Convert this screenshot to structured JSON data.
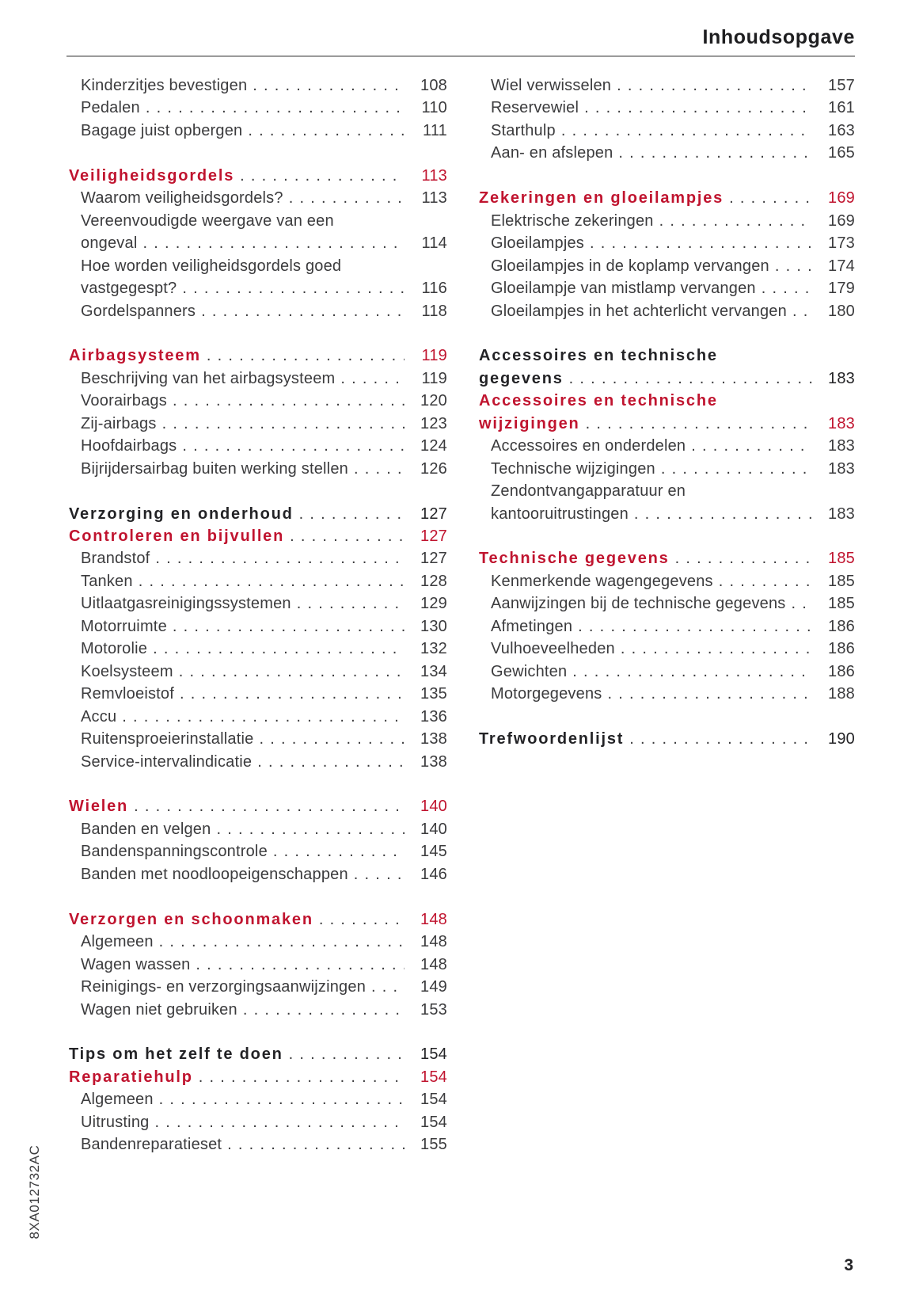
{
  "header": {
    "title": "Inhoudsopgave"
  },
  "footer": {
    "page_number": "3"
  },
  "doc_code": "8XA012732AC",
  "colors": {
    "accent_red": "#c0142f",
    "body_text": "#3b3b3d",
    "heading_black": "#232326",
    "rule_gray": "#9b9b9b"
  },
  "toc": {
    "columns": [
      {
        "groups": [
          {
            "entries": [
              {
                "style": "sub",
                "label": "Kinderzitjes bevestigen",
                "page": "108"
              },
              {
                "style": "sub",
                "label": "Pedalen",
                "page": "110"
              },
              {
                "style": "sub",
                "label": "Bagage juist opbergen",
                "page": "111"
              }
            ]
          },
          {
            "entries": [
              {
                "style": "red",
                "label": "Veiligheidsgordels",
                "page": "113"
              },
              {
                "style": "sub",
                "label": "Waarom veiligheidsgordels?",
                "page": "113"
              },
              {
                "style": "sub",
                "label": "Vereenvoudigde weergave van een",
                "label2": "ongeval",
                "page": "114"
              },
              {
                "style": "sub",
                "label": "Hoe worden veiligheidsgordels goed",
                "label2": "vastgegespt?",
                "page": "116"
              },
              {
                "style": "sub",
                "label": "Gordelspanners",
                "page": "118"
              }
            ]
          },
          {
            "entries": [
              {
                "style": "red",
                "label": "Airbagsysteem",
                "page": "119"
              },
              {
                "style": "sub",
                "label": "Beschrijving van het airbagsysteem",
                "page": "119"
              },
              {
                "style": "sub",
                "label": "Voorairbags",
                "page": "120"
              },
              {
                "style": "sub",
                "label": "Zij-airbags",
                "page": "123"
              },
              {
                "style": "sub",
                "label": "Hoofdairbags",
                "page": "124"
              },
              {
                "style": "sub",
                "label": "Bijrijdersairbag buiten werking stellen",
                "page": "126"
              }
            ]
          },
          {
            "entries": [
              {
                "style": "black",
                "label": "Verzorging en onderhoud",
                "page": "127"
              },
              {
                "style": "red",
                "label": "Controleren en bijvullen",
                "page": "127"
              },
              {
                "style": "sub",
                "label": "Brandstof",
                "page": "127"
              },
              {
                "style": "sub",
                "label": "Tanken",
                "page": "128"
              },
              {
                "style": "sub",
                "label": "Uitlaatgasreinigingssystemen",
                "page": "129"
              },
              {
                "style": "sub",
                "label": "Motorruimte",
                "page": "130"
              },
              {
                "style": "sub",
                "label": "Motorolie",
                "page": "132"
              },
              {
                "style": "sub",
                "label": "Koelsysteem",
                "page": "134"
              },
              {
                "style": "sub",
                "label": "Remvloeistof",
                "page": "135"
              },
              {
                "style": "sub",
                "label": "Accu",
                "page": "136"
              },
              {
                "style": "sub",
                "label": "Ruitensproeierinstallatie",
                "page": "138"
              },
              {
                "style": "sub",
                "label": "Service-intervalindicatie",
                "page": "138"
              }
            ]
          },
          {
            "entries": [
              {
                "style": "red",
                "label": "Wielen",
                "page": "140"
              },
              {
                "style": "sub",
                "label": "Banden en velgen",
                "page": "140"
              },
              {
                "style": "sub",
                "label": "Bandenspanningscontrole",
                "page": "145"
              },
              {
                "style": "sub",
                "label": "Banden met noodloopeigenschappen",
                "page": "146"
              }
            ]
          },
          {
            "entries": [
              {
                "style": "red",
                "label": "Verzorgen en schoonmaken",
                "page": "148"
              },
              {
                "style": "sub",
                "label": "Algemeen",
                "page": "148"
              },
              {
                "style": "sub",
                "label": "Wagen wassen",
                "page": "148"
              },
              {
                "style": "sub",
                "label": "Reinigings- en verzorgingsaanwijzingen",
                "page": "149"
              },
              {
                "style": "sub",
                "label": "Wagen niet gebruiken",
                "page": "153"
              }
            ]
          },
          {
            "entries": [
              {
                "style": "black",
                "label": "Tips om het zelf te doen",
                "page": "154"
              },
              {
                "style": "red",
                "label": "Reparatiehulp",
                "page": "154"
              },
              {
                "style": "sub",
                "label": "Algemeen",
                "page": "154"
              },
              {
                "style": "sub",
                "label": "Uitrusting",
                "page": "154"
              },
              {
                "style": "sub",
                "label": "Bandenreparatieset",
                "page": "155"
              }
            ]
          }
        ]
      },
      {
        "groups": [
          {
            "entries": [
              {
                "style": "sub",
                "label": "Wiel verwisselen",
                "page": "157"
              },
              {
                "style": "sub",
                "label": "Reservewiel",
                "page": "161"
              },
              {
                "style": "sub",
                "label": "Starthulp",
                "page": "163"
              },
              {
                "style": "sub",
                "label": "Aan- en afslepen",
                "page": "165"
              }
            ]
          },
          {
            "entries": [
              {
                "style": "red",
                "label": "Zekeringen en gloeilampjes",
                "page": "169"
              },
              {
                "style": "sub",
                "label": "Elektrische zekeringen",
                "page": "169"
              },
              {
                "style": "sub",
                "label": "Gloeilampjes",
                "page": "173"
              },
              {
                "style": "sub",
                "label": "Gloeilampjes in de koplamp vervangen",
                "page": "174"
              },
              {
                "style": "sub",
                "label": "Gloeilampje van mistlamp vervangen",
                "page": "179"
              },
              {
                "style": "sub",
                "label": "Gloeilampjes in het achterlicht vervangen",
                "page": "180"
              }
            ]
          },
          {
            "entries": [
              {
                "style": "black",
                "label": "Accessoires en technische",
                "label2": "gegevens",
                "page": "183"
              },
              {
                "style": "red",
                "label": "Accessoires en technische",
                "label2": "wijzigingen",
                "page": "183"
              },
              {
                "style": "sub",
                "label": "Accessoires en onderdelen",
                "page": "183"
              },
              {
                "style": "sub",
                "label": "Technische wijzigingen",
                "page": "183"
              },
              {
                "style": "sub",
                "label": "Zendontvangapparatuur en",
                "label2": "kantooruitrustingen",
                "page": "183"
              }
            ]
          },
          {
            "entries": [
              {
                "style": "red",
                "label": "Technische gegevens",
                "page": "185"
              },
              {
                "style": "sub",
                "label": "Kenmerkende wagengegevens",
                "page": "185"
              },
              {
                "style": "sub",
                "label": "Aanwijzingen bij de technische gegevens",
                "page": "185"
              },
              {
                "style": "sub",
                "label": "Afmetingen",
                "page": "186"
              },
              {
                "style": "sub",
                "label": "Vulhoeveelheden",
                "page": "186"
              },
              {
                "style": "sub",
                "label": "Gewichten",
                "page": "186"
              },
              {
                "style": "sub",
                "label": "Motorgegevens",
                "page": "188"
              }
            ]
          },
          {
            "entries": [
              {
                "style": "black",
                "label": "Trefwoordenlijst",
                "page": "190"
              }
            ]
          }
        ]
      }
    ]
  }
}
